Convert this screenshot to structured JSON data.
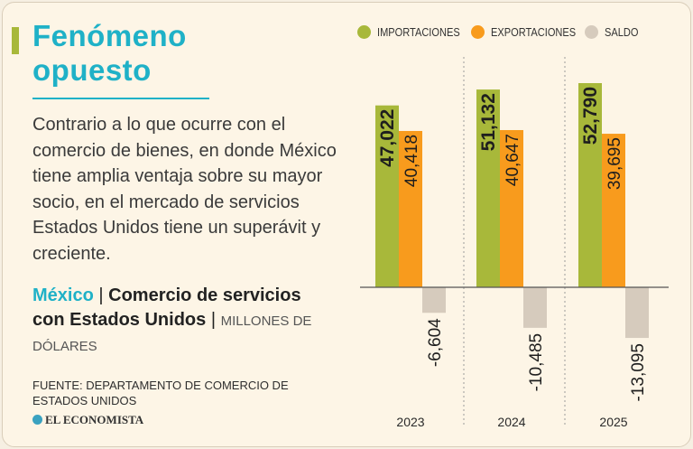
{
  "text": {
    "title_line1": "Fenómeno",
    "title_line2": "opuesto",
    "description": "Contrario a lo que ocurre con el comercio de bienes, en donde México tiene amplia ventaja sobre su mayor socio, en el mercado de servicios Estados Unidos tiene un superávit y creciente.",
    "subtitle_country": "México",
    "subtitle_sep1": "|",
    "subtitle_main": "Comercio de servicios con Estados Unidos",
    "subtitle_sep2": "|",
    "subtitle_units": "MILLONES DE DÓLARES",
    "source": "FUENTE: DEPARTAMENTO DE COMERCIO DE ESTADOS UNIDOS",
    "brand": "EL ECONOMISTA"
  },
  "colors": {
    "title": "#1fb1c7",
    "importaciones": "#a8b83a",
    "exportaciones": "#f89b1d",
    "saldo": "#d6cbbd"
  },
  "chart_data": {
    "type": "bar",
    "categories": [
      "2023",
      "2024",
      "2025"
    ],
    "series": [
      {
        "name": "IMPORTACIONES",
        "values": [
          47022,
          51132,
          52790
        ],
        "labels": [
          "47,022",
          "51,132",
          "52,790"
        ],
        "color": "#a8b83a"
      },
      {
        "name": "EXPORTACIONES",
        "values": [
          40418,
          40647,
          39695
        ],
        "labels": [
          "40,418",
          "40,647",
          "39,695"
        ],
        "color": "#f89b1d"
      },
      {
        "name": "SALDO",
        "values": [
          -6604,
          -10485,
          -13095
        ],
        "labels": [
          "-6,604",
          "-10,485",
          "-13,095"
        ],
        "color": "#d6cbbd"
      }
    ],
    "legend_position": "top",
    "grid": false,
    "ylim": [
      -14000,
      54000
    ]
  }
}
